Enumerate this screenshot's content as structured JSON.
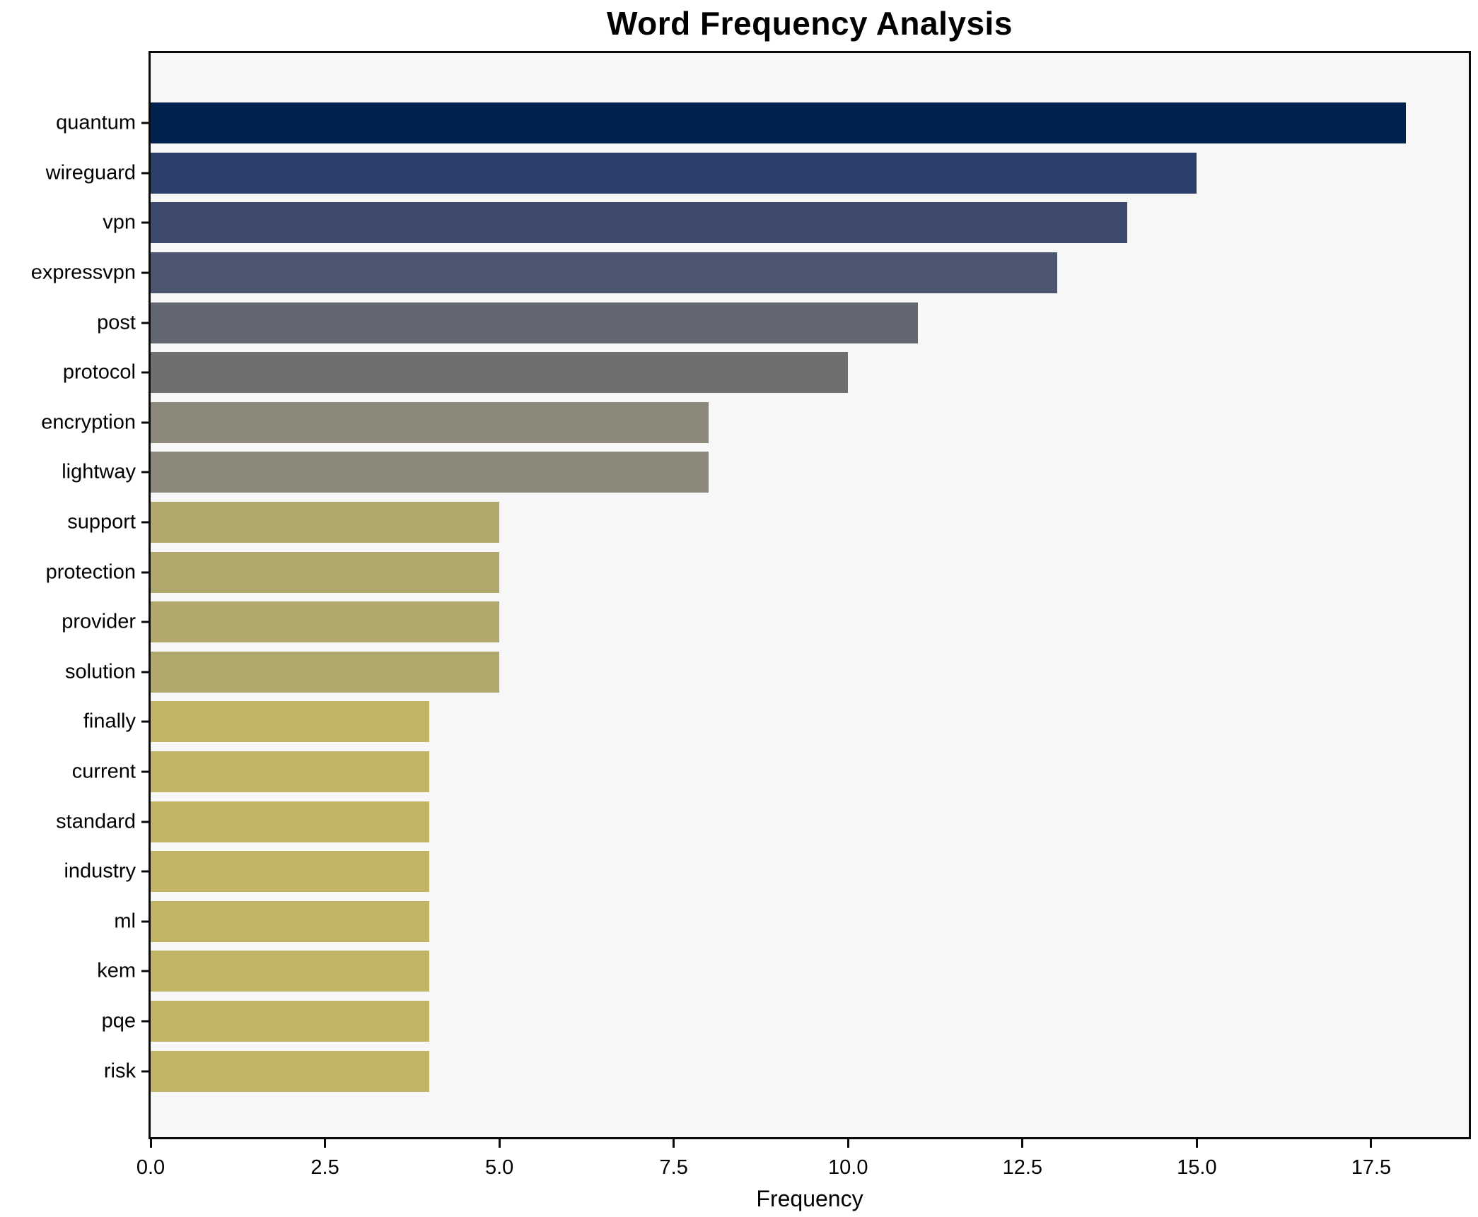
{
  "chart_data": {
    "type": "bar",
    "orientation": "horizontal",
    "title": "Word Frequency Analysis",
    "xlabel": "Frequency",
    "ylabel": "",
    "xlim": [
      0,
      18.9
    ],
    "grid": false,
    "legend": null,
    "plot_background": "#f7f7f7",
    "figure_background": "#ffffff",
    "spine_color": "#0a0a0a",
    "x_ticks": [
      {
        "value": 0,
        "label": "0.0"
      },
      {
        "value": 2.5,
        "label": "2.5"
      },
      {
        "value": 5,
        "label": "5.0"
      },
      {
        "value": 7.5,
        "label": "7.5"
      },
      {
        "value": 10,
        "label": "10.0"
      },
      {
        "value": 12.5,
        "label": "12.5"
      },
      {
        "value": 15,
        "label": "15.0"
      },
      {
        "value": 17.5,
        "label": "17.5"
      }
    ],
    "categories": [
      "quantum",
      "wireguard",
      "vpn",
      "expressvpn",
      "post",
      "protocol",
      "encryption",
      "lightway",
      "support",
      "protection",
      "provider",
      "solution",
      "finally",
      "current",
      "standard",
      "industry",
      "ml",
      "kem",
      "pqe",
      "risk"
    ],
    "values": [
      18,
      15,
      14,
      13,
      11,
      10,
      8,
      8,
      5,
      5,
      5,
      5,
      4,
      4,
      4,
      4,
      4,
      4,
      4,
      4
    ],
    "bar_colors": [
      "#00224e",
      "#2c3e6a",
      "#3d4a6e",
      "#4c5670",
      "#636771",
      "#6f6f70",
      "#8b8779",
      "#8b8779",
      "#b1a86e",
      "#b1a86e",
      "#b1a86e",
      "#b1a86e",
      "#c1b465",
      "#c1b465",
      "#c1b465",
      "#c1b465",
      "#c1b465",
      "#c1b465",
      "#c1b465",
      "#c2b566"
    ]
  }
}
